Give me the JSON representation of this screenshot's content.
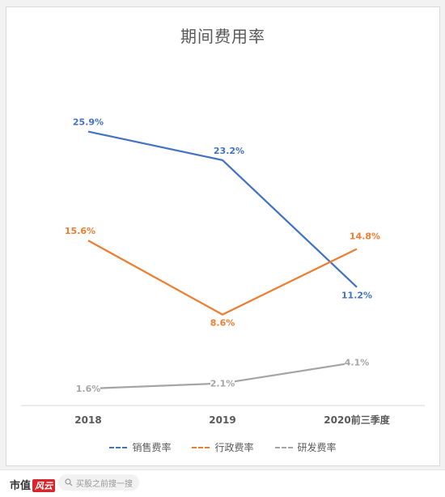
{
  "chart_data": {
    "type": "line",
    "title": "期间费用率",
    "categories": [
      "2018",
      "2019",
      "2020前三季度"
    ],
    "ylim": [
      0,
      30
    ],
    "grid": false,
    "legend_position": "bottom",
    "series": [
      {
        "name": "销售费率",
        "color": "#4472c4",
        "values": [
          25.9,
          23.2,
          11.2
        ],
        "labels": [
          "25.9%",
          "23.2%",
          "11.2%"
        ]
      },
      {
        "name": "行政费率",
        "color": "#ed7d31",
        "values": [
          15.6,
          8.6,
          14.8
        ],
        "labels": [
          "15.6%",
          "8.6%",
          "14.8%"
        ]
      },
      {
        "name": "研发费率",
        "color": "#a5a5a5",
        "values": [
          1.6,
          2.1,
          4.1
        ],
        "labels": [
          "1.6%",
          "2.1%",
          "4.1%"
        ]
      }
    ]
  },
  "footer": {
    "brand": "市值",
    "brand_mark": "风云",
    "search_placeholder": "买股之前搜一搜",
    "search_icon": "search-icon"
  }
}
